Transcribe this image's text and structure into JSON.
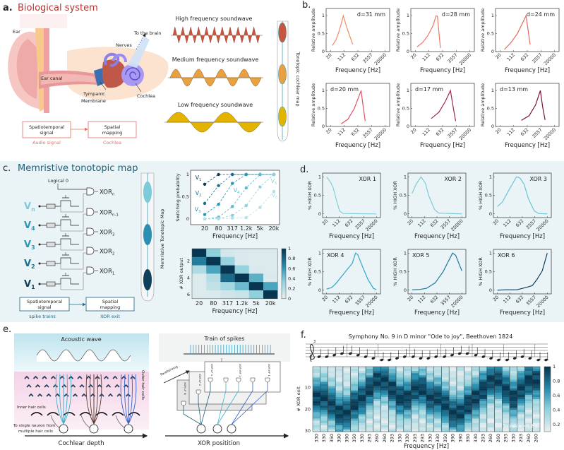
{
  "panel_a": {
    "label": "a.",
    "title": "Biological system",
    "ear_labels": {
      "ear": "Ear",
      "ear_canal": "Ear canal",
      "tympanic": "Tympanic",
      "membrane": "Membrane",
      "nerves": "Nerves",
      "to_brain": "To the brain",
      "cochlea": "Cochlea"
    },
    "waves": {
      "high": "High frequency soundwave",
      "medium": "Medium frequency soundwave",
      "low": "Low frequency soundwave"
    },
    "map_label": "Tonotopic cochlear map",
    "flow": {
      "box1_line1": "Spatiotemporal",
      "box1_line2": "signal",
      "box2_line1": "Spatial",
      "box2_line2": "mapping",
      "sub1": "Audio signal",
      "sub2": "Cochlea"
    },
    "colors": {
      "title": "#b8332e",
      "high": "#c8553d",
      "medium": "#e8a040",
      "low": "#e2b400",
      "flow": "#e07060"
    }
  },
  "panel_b": {
    "label": "b."
  },
  "panel_c": {
    "label": "c.",
    "title": "Memristive tonotopic map",
    "logical_zero": "Logical 0",
    "inputs": [
      {
        "main": "V",
        "sub": "n",
        "color": "#7ccbd8"
      },
      {
        "main": "V",
        "sub": "4",
        "color": "#2a96b8"
      },
      {
        "main": "V",
        "sub": "3",
        "color": "#2a96b8"
      },
      {
        "main": "V",
        "sub": "2",
        "color": "#1a6e90"
      },
      {
        "main": "V",
        "sub": "1",
        "color": "#0e3f58"
      }
    ],
    "outputs": [
      {
        "main": "XOR",
        "sub": "n"
      },
      {
        "main": "XOR",
        "sub": "n-1"
      },
      {
        "main": "XOR",
        "sub": "3"
      },
      {
        "main": "XOR",
        "sub": "2"
      },
      {
        "main": "XOR",
        "sub": "1"
      }
    ],
    "map_label": "Memristive Tonotopic Map",
    "flow": {
      "box1_line1": "Spatiotemporal",
      "box1_line2": "signal",
      "box2_line1": "Spatial",
      "box2_line2": "mapping",
      "sub1": "spike trains",
      "sub2": "XOR exit"
    },
    "colors": {
      "title": "#1a5f7a",
      "flow": "#1a6e90"
    }
  },
  "panel_d": {
    "label": "d."
  },
  "panel_e": {
    "label": "e.",
    "acoustic_wave": "Acoustic wave",
    "inner_hair_cells": "Inner hair cells",
    "outer_hair_cells": "Outer hair cells",
    "neuron_line1": "To single neuron from",
    "neuron_line2": "multiple  hair cells",
    "cochlear_depth": "Cochlear depth",
    "train_of_spikes": "Train of spikes",
    "parallelizing": "Parallelizing",
    "gate_labels": [
      "XOR LF N",
      "XOR LF 2",
      "XOR LF 1",
      "XOR MF 1",
      "XOR HF 1"
    ],
    "xor_position": "XOR positition"
  },
  "panel_f": {
    "label": "f.",
    "staff_mark": "3"
  },
  "chart_data": [
    {
      "id": "b",
      "type": "line",
      "xscale": "log",
      "xticks": [
        20,
        112,
        632,
        3557,
        20000
      ],
      "xtick_labels": [
        "20",
        "112",
        "632",
        "3557",
        "20000"
      ],
      "yticks": [
        0,
        0.5,
        1
      ],
      "ytick_labels": [
        "0",
        "0.5",
        "1"
      ],
      "ylim": [
        0,
        1.2
      ],
      "xlabel": "Frequency [Hz]",
      "ylabel": "Relative amplitude",
      "series": [
        {
          "name": "d=31 mm",
          "color": "#f28a68",
          "points": [
            [
              25,
              0.17
            ],
            [
              40,
              0.33
            ],
            [
              60,
              0.58
            ],
            [
              80,
              0.8
            ],
            [
              100,
              1
            ],
            [
              160,
              0.65
            ],
            [
              330,
              0.2
            ]
          ]
        },
        {
          "name": "d=28 mm",
          "color": "#ee7660",
          "points": [
            [
              25,
              0.13
            ],
            [
              50,
              0.25
            ],
            [
              100,
              0.45
            ],
            [
              180,
              0.7
            ],
            [
              280,
              1
            ],
            [
              330,
              0.98
            ],
            [
              480,
              0.1
            ]
          ]
        },
        {
          "name": "d=24 mm",
          "color": "#e6685c",
          "points": [
            [
              35,
              0.06
            ],
            [
              80,
              0.25
            ],
            [
              180,
              0.5
            ],
            [
              350,
              0.8
            ],
            [
              540,
              1
            ],
            [
              700,
              0.6
            ],
            [
              900,
              0.2
            ]
          ]
        },
        {
          "name": "d=20 mm",
          "color": "#dc5560",
          "points": [
            [
              75,
              0.07
            ],
            [
              180,
              0.2
            ],
            [
              400,
              0.5
            ],
            [
              700,
              0.82
            ],
            [
              950,
              1
            ],
            [
              1200,
              0.6
            ],
            [
              1600,
              0.15
            ]
          ]
        },
        {
          "name": "d=17 mm",
          "color": "#a02848",
          "points": [
            [
              150,
              0.22
            ],
            [
              400,
              0.4
            ],
            [
              900,
              0.7
            ],
            [
              1700,
              1
            ],
            [
              2400,
              0.55
            ],
            [
              3300,
              0.15
            ]
          ]
        },
        {
          "name": "d=13 mm",
          "color": "#7a1030",
          "points": [
            [
              300,
              0.17
            ],
            [
              800,
              0.3
            ],
            [
              1800,
              0.6
            ],
            [
              3300,
              1
            ],
            [
              4400,
              0.55
            ],
            [
              6000,
              0.18
            ]
          ]
        }
      ]
    },
    {
      "id": "c-switching",
      "type": "line",
      "categories": [
        "20",
        "80",
        "317",
        "1.2k",
        "5k",
        "20k"
      ],
      "yticks": [
        0,
        0.5,
        1
      ],
      "ytick_labels": [
        "0",
        "0.5",
        "1"
      ],
      "ylim": [
        0,
        1
      ],
      "xlabel": "Frequency [Hz]",
      "ylabel": "Switching probability",
      "series": [
        {
          "name": "V",
          "sub": "1",
          "color": "#0e3f58",
          "values": [
            0.78,
            1,
            1,
            1,
            1,
            1
          ]
        },
        {
          "name": "V",
          "sub": "2",
          "color": "#1a6e90",
          "values": [
            0.35,
            0.75,
            1,
            1,
            1,
            1
          ]
        },
        {
          "name": "V",
          "sub": "3",
          "color": "#2a96b8",
          "values": [
            0.1,
            0.33,
            0.8,
            1,
            1,
            1
          ]
        },
        {
          "name": "V",
          "sub": "4",
          "color": "#5ab8d0",
          "values": [
            0,
            0.04,
            0.28,
            0.7,
            1,
            1
          ]
        },
        {
          "name": "V",
          "sub": "5",
          "color": "#8fd0de",
          "values": [
            0,
            0.02,
            0.08,
            0.3,
            0.72,
            1
          ]
        },
        {
          "name": "V",
          "sub": "6",
          "color": "#b4e0e8",
          "values": [
            0,
            0,
            0.02,
            0.03,
            0.26,
            0.62
          ]
        }
      ]
    },
    {
      "id": "c-heatmap",
      "type": "heatmap",
      "xcategories": [
        "20",
        "80",
        "317",
        "1.2k",
        "5k",
        "20k"
      ],
      "yticks": [
        2,
        4,
        6
      ],
      "ylabel": "# XOR output",
      "xlabel": "Frequency [Hz]",
      "colorbar_ticks": [
        "0",
        "0.2",
        "0.4",
        "0.6",
        "0.8",
        "1"
      ],
      "values": [
        [
          1,
          0.35,
          0.08,
          0.06,
          0.05,
          0.05
        ],
        [
          0.72,
          1,
          0.32,
          0.06,
          0.05,
          0.05
        ],
        [
          0.22,
          0.55,
          1,
          0.32,
          0.06,
          0.05
        ],
        [
          0.05,
          0.2,
          0.8,
          1,
          0.5,
          0.06
        ],
        [
          0.05,
          0.15,
          0.27,
          0.45,
          1,
          0.55
        ],
        [
          0.05,
          0.06,
          0.1,
          0.12,
          0.35,
          1
        ]
      ]
    },
    {
      "id": "d",
      "type": "line",
      "xscale": "log",
      "xticks": [
        20,
        112,
        632,
        3557,
        20000
      ],
      "xtick_labels": [
        "20",
        "112",
        "632",
        "3557",
        "20000"
      ],
      "yticks": [
        0,
        0.5,
        1
      ],
      "ytick_labels": [
        "0",
        "0.5",
        "1"
      ],
      "ylim": [
        -0.1,
        1.1
      ],
      "xlabel": "Frequency [Hz]",
      "ylabel": "% HIGH XOR",
      "series": [
        {
          "name": "XOR 1",
          "color": "#86ced8",
          "points": [
            [
              20,
              1
            ],
            [
              35,
              0.85
            ],
            [
              50,
              0.7
            ],
            [
              80,
              0.35
            ],
            [
              120,
              0.08
            ],
            [
              200,
              0.01
            ],
            [
              20000,
              0
            ]
          ]
        },
        {
          "name": "XOR 2",
          "color": "#7ccbd6",
          "points": [
            [
              20,
              0.55
            ],
            [
              35,
              0.8
            ],
            [
              70,
              1
            ],
            [
              130,
              0.82
            ],
            [
              200,
              0.5
            ],
            [
              450,
              0.12
            ],
            [
              800,
              0.02
            ],
            [
              20000,
              0
            ]
          ]
        },
        {
          "name": "XOR 3",
          "color": "#6cc4d4",
          "points": [
            [
              20,
              0.2
            ],
            [
              40,
              0.32
            ],
            [
              100,
              0.65
            ],
            [
              280,
              1
            ],
            [
              450,
              0.97
            ],
            [
              800,
              0.8
            ],
            [
              1500,
              0.4
            ],
            [
              3300,
              0.08
            ],
            [
              6000,
              0.01
            ],
            [
              20000,
              0
            ]
          ]
        },
        {
          "name": "XOR 4",
          "color": "#33a4c6",
          "points": [
            [
              20,
              0.03
            ],
            [
              40,
              0.07
            ],
            [
              70,
              0.17
            ],
            [
              180,
              0.4
            ],
            [
              450,
              0.62
            ],
            [
              700,
              0.72
            ],
            [
              1100,
              1
            ],
            [
              1500,
              0.96
            ],
            [
              3000,
              0.62
            ],
            [
              6000,
              0.3
            ],
            [
              13000,
              0.05
            ],
            [
              20000,
              0.01
            ]
          ]
        },
        {
          "name": "XOR 5",
          "color": "#1a78a0",
          "points": [
            [
              20,
              0.01
            ],
            [
              60,
              0.02
            ],
            [
              150,
              0.05
            ],
            [
              500,
              0.2
            ],
            [
              1500,
              0.5
            ],
            [
              5500,
              1
            ],
            [
              8500,
              0.94
            ],
            [
              20000,
              0.52
            ]
          ]
        },
        {
          "name": "XOR 6",
          "color": "#0e3f58",
          "points": [
            [
              20,
              0
            ],
            [
              60,
              0.01
            ],
            [
              300,
              0.01
            ],
            [
              1200,
              0.08
            ],
            [
              2500,
              0.12
            ],
            [
              5000,
              0.3
            ],
            [
              10000,
              0.52
            ],
            [
              20000,
              1
            ]
          ]
        }
      ]
    },
    {
      "id": "f",
      "type": "heatmap",
      "title": "Symphony No. 9 in D minor \"Ode to joy\", Beethoven 1824",
      "columns": [
        "330",
        "330",
        "350",
        "390",
        "390",
        "350",
        "330",
        "293",
        "260",
        "260",
        "293",
        "330",
        "330",
        "293",
        "293",
        "330",
        "330",
        "350",
        "390",
        "390",
        "350",
        "330",
        "293",
        "260",
        "260",
        "293",
        "330",
        "293",
        "260",
        "260"
      ],
      "rows": 30,
      "yticks": [
        10,
        20,
        30
      ],
      "ylabel": "# XOR exit",
      "xlabel": "Frequency [Hz]",
      "colorbar_ticks": [
        "0.2",
        "0.4",
        "0.6",
        "0.8",
        "1"
      ],
      "colorbar_range": [
        0.1,
        1
      ],
      "annotation": "Twindow=0.2 s",
      "peak_exit_by_frequency": {
        "260": 7,
        "293": 11,
        "330": 15,
        "350": 18,
        "390": 22
      }
    }
  ]
}
